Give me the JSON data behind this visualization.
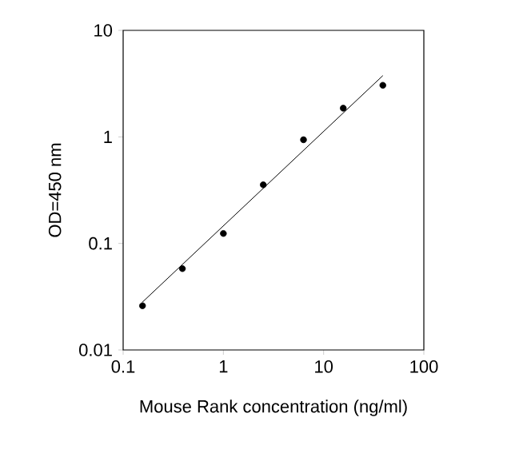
{
  "chart_data": {
    "type": "scatter",
    "xlabel": "Mouse Rank concentration (ng/ml)",
    "ylabel": "OD=450 nm",
    "log": "xy",
    "marker": "circle",
    "xlim": [
      0.1,
      100
    ],
    "ylim": [
      0.01,
      10
    ],
    "xticks": [
      0.1,
      1,
      10,
      100
    ],
    "yticks": [
      0.01,
      0.1,
      1,
      10
    ],
    "series": [
      {
        "color": "#000000",
        "x": [
          0.156,
          0.39,
          1,
          2.5,
          6.3,
          15.7,
          39
        ],
        "values": [
          0.026,
          0.058,
          0.124,
          0.355,
          0.94,
          1.86,
          3.05
        ]
      },
      {
        "type": "line",
        "color": "#000000",
        "line_style": "solid",
        "marker": "none",
        "x": [
          0.155,
          39
        ],
        "values": [
          0.028,
          3.76
        ]
      }
    ]
  }
}
